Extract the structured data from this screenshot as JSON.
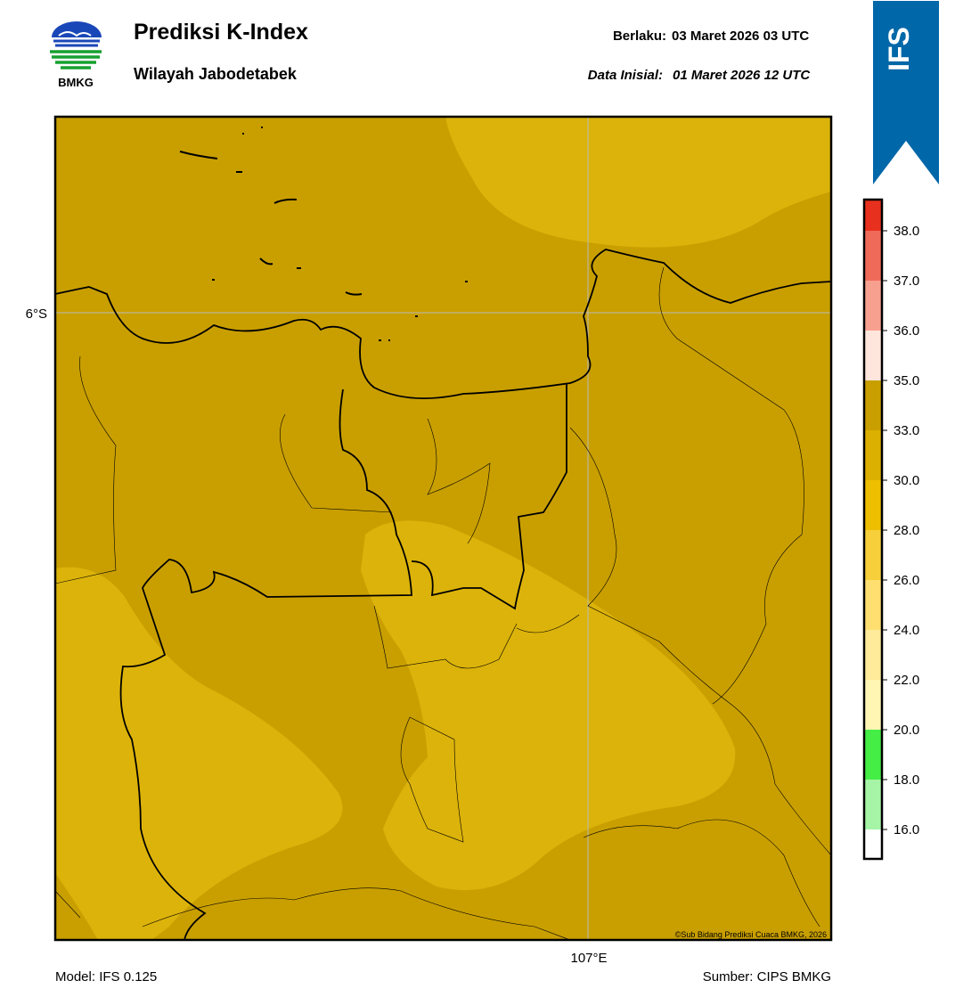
{
  "header": {
    "logo_text": "BMKG",
    "title": "Prediksi K-Index",
    "subtitle": "Wilayah Jabodetabek",
    "valid_label": "Berlaku:",
    "valid_time": "03 Maret 2026 03 UTC",
    "init_label": "Data Inisial:",
    "init_time": "01 Maret 2026 12 UTC",
    "badge": "IFS"
  },
  "map": {
    "lat_label": "6°S",
    "lon_label": "107°E",
    "copyright": "©Sub Bidang Prediksi Cuaca BMKG, 2026"
  },
  "colorbar": {
    "ticks": [
      {
        "value": 16,
        "label": "16.0"
      },
      {
        "value": 18,
        "label": "18.0"
      },
      {
        "value": 20,
        "label": "20.0"
      },
      {
        "value": 22,
        "label": "22.0"
      },
      {
        "value": 24,
        "label": "24.0"
      },
      {
        "value": 26,
        "label": "26.0"
      },
      {
        "value": 28,
        "label": "28.0"
      },
      {
        "value": 30,
        "label": "30.0"
      },
      {
        "value": 33,
        "label": "33.0"
      },
      {
        "value": 35,
        "label": "35.0"
      },
      {
        "value": 36,
        "label": "36.0"
      },
      {
        "value": 37,
        "label": "37.0"
      },
      {
        "value": 38,
        "label": "38.0"
      }
    ],
    "colors": [
      "#ffffff",
      "#a6f5a6",
      "#44ee44",
      "#fff6b4",
      "#ffeb9a",
      "#ffdf70",
      "#f6cf3a",
      "#eebf00",
      "#dcb000",
      "#c99f00",
      "#ffe6dc",
      "#f8a090",
      "#f06a5a",
      "#e8301e"
    ]
  },
  "footer": {
    "model": "Model: IFS 0.125",
    "source": "Sumber: CIPS BMKG"
  }
}
